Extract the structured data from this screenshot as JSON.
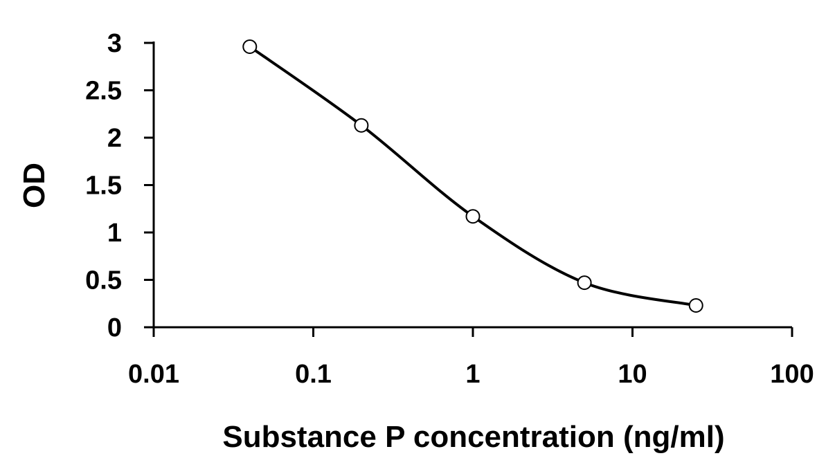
{
  "chart_data": {
    "type": "line",
    "title": "",
    "xlabel": "Substance P concentration (ng/ml)",
    "ylabel": "OD",
    "x_scale": "log",
    "xlim": [
      0.01,
      100
    ],
    "ylim": [
      0,
      3
    ],
    "x_ticks": [
      0.01,
      0.1,
      1,
      10,
      100
    ],
    "x_tick_labels": [
      "0.01",
      "0.1",
      "1",
      "10",
      "100"
    ],
    "y_ticks": [
      0,
      0.5,
      1,
      1.5,
      2,
      2.5,
      3
    ],
    "y_tick_labels": [
      "0",
      "0.5",
      "1",
      "1.5",
      "2",
      "2.5",
      "3"
    ],
    "grid": false,
    "legend": "none",
    "smooth": true,
    "series": [
      {
        "x": [
          0.04,
          0.2,
          1,
          5,
          25
        ],
        "y": [
          2.96,
          2.13,
          1.17,
          0.47,
          0.23
        ]
      }
    ],
    "colors": {
      "line": "#000000",
      "marker_fill": "#ffffff",
      "marker_stroke": "#000000",
      "axis": "#000000"
    }
  }
}
